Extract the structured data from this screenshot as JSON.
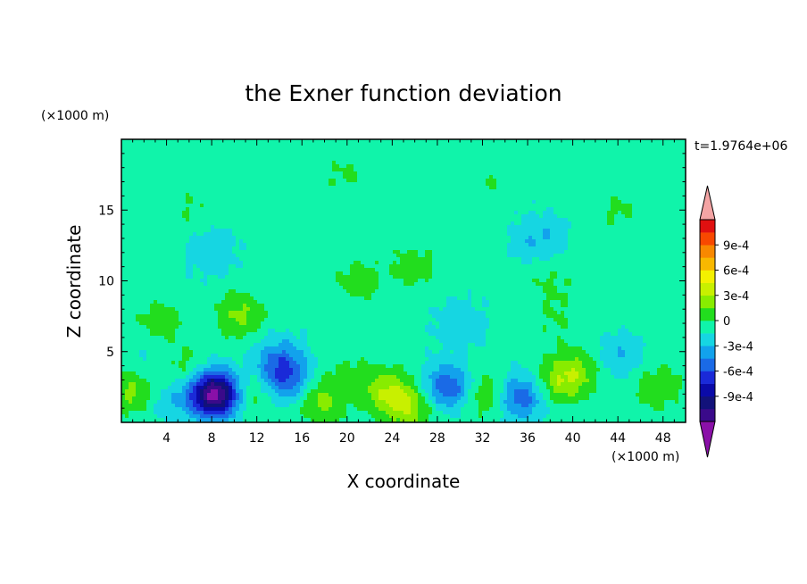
{
  "chart_data": {
    "type": "heatmap",
    "title": "the Exner function deviation",
    "xlabel": "X coordinate",
    "ylabel": "Z coordinate",
    "x_unit": "(×1000 m)",
    "y_unit": "(×1000 m)",
    "time_label": "t=1.9764e+06",
    "xlim": [
      0,
      50
    ],
    "ylim": [
      0,
      20
    ],
    "x_ticks": [
      4,
      8,
      12,
      16,
      20,
      24,
      28,
      32,
      36,
      40,
      44,
      48
    ],
    "y_ticks": [
      5,
      10,
      15
    ],
    "colorbar": {
      "labels": [
        "9e-4",
        "6e-4",
        "3e-4",
        "0",
        "-3e-4",
        "-6e-4",
        "-9e-4"
      ],
      "levels": [
        -0.0012,
        -0.00105,
        -0.0009,
        -0.00075,
        -0.0006,
        -0.00045,
        -0.0003,
        -0.00015,
        0,
        0.00015,
        0.0003,
        0.00045,
        0.0006,
        0.00075,
        0.0009,
        0.00105,
        0.0012
      ],
      "colors": [
        "#3a0a8a",
        "#12127a",
        "#0a0aa8",
        "#1a2ad8",
        "#1a6ae6",
        "#12a2ec",
        "#16d6e2",
        "#10f4aa",
        "#22dd1e",
        "#88ec00",
        "#c8f000",
        "#f4f000",
        "#f8b800",
        "#f88800",
        "#f84800",
        "#e01010"
      ],
      "under_color": "#8a10a8",
      "over_color": "#f4a4a4"
    },
    "field": {
      "background_value": -0.0001,
      "features": [
        {
          "x": 8.5,
          "z": 2.0,
          "value": -0.00072
        },
        {
          "x": 8.0,
          "z": 2.0,
          "value": -0.0005
        },
        {
          "x": 14.5,
          "z": 3.0,
          "value": -0.00045
        },
        {
          "x": 14.0,
          "z": 4.5,
          "value": -0.0003
        },
        {
          "x": 29.0,
          "z": 2.5,
          "value": -0.0005
        },
        {
          "x": 35.2,
          "z": 1.8,
          "value": -0.0005
        },
        {
          "x": 43.8,
          "z": 4.5,
          "value": -0.00025
        },
        {
          "x": 4.0,
          "z": 1.5,
          "value": -0.00018
        },
        {
          "x": 2.5,
          "z": 4.0,
          "value": -0.0001
        },
        {
          "x": 1.2,
          "z": 2.2,
          "value": 0.00032
        },
        {
          "x": 5.6,
          "z": 3.8,
          "value": 0.00018
        },
        {
          "x": 11.5,
          "z": 2.0,
          "value": 0.00025
        },
        {
          "x": 17.8,
          "z": 1.5,
          "value": 0.0003
        },
        {
          "x": 23.5,
          "z": 2.2,
          "value": 0.00035
        },
        {
          "x": 25.5,
          "z": 1.0,
          "value": 0.00035
        },
        {
          "x": 32.5,
          "z": 2.0,
          "value": 0.00032
        },
        {
          "x": 39.0,
          "z": 3.0,
          "value": 0.0004
        },
        {
          "x": 41.5,
          "z": 4.0,
          "value": 0.0002
        },
        {
          "x": 47.5,
          "z": 2.5,
          "value": 0.00022
        },
        {
          "x": 20.0,
          "z": 3.5,
          "value": 0.00012
        },
        {
          "x": 10.5,
          "z": 7.6,
          "value": 0.00028
        },
        {
          "x": 3.5,
          "z": 7.2,
          "value": 0.00018
        },
        {
          "x": 38.5,
          "z": 7.2,
          "value": 0.0001
        },
        {
          "x": 30.0,
          "z": 7.0,
          "value": -0.00018
        },
        {
          "x": 26.0,
          "z": 11.0,
          "value": 0.00018
        },
        {
          "x": 21.0,
          "z": 10.0,
          "value": 0.00018
        },
        {
          "x": 38.0,
          "z": 9.8,
          "value": 0.00012
        },
        {
          "x": 37.0,
          "z": 13.0,
          "value": -0.00022
        },
        {
          "x": 44.0,
          "z": 15.0,
          "value": 0.00012
        },
        {
          "x": 20.0,
          "z": 17.5,
          "value": 0.00012
        },
        {
          "x": 33.0,
          "z": 17.0,
          "value": 0.0001
        },
        {
          "x": 6.0,
          "z": 15.0,
          "value": 0.0001
        },
        {
          "x": 8.0,
          "z": 12.0,
          "value": -0.00018
        }
      ]
    }
  }
}
